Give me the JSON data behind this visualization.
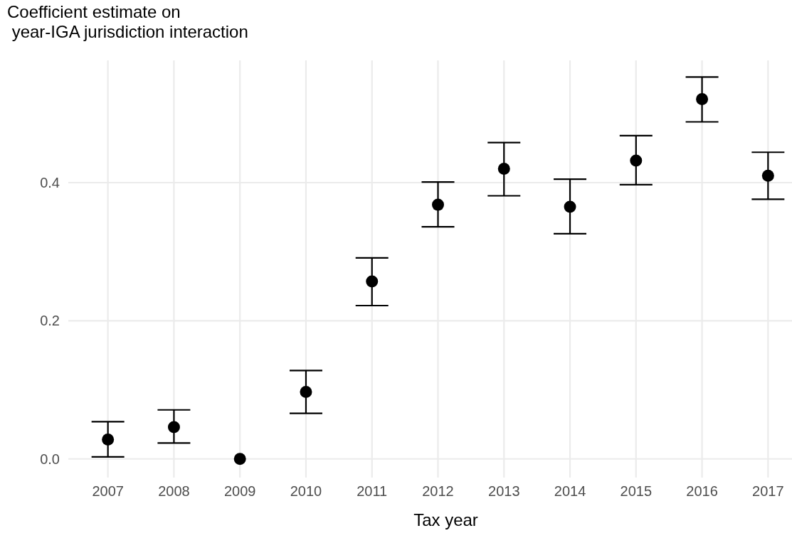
{
  "chart_data": {
    "type": "scatter",
    "ylabel": "Coefficient estimate on\n year-IGA jurisdiction interaction",
    "xlabel": "Tax year",
    "categories": [
      "2007",
      "2008",
      "2009",
      "2010",
      "2011",
      "2012",
      "2013",
      "2014",
      "2015",
      "2016",
      "2017"
    ],
    "values": [
      0.028,
      0.046,
      0,
      0.097,
      0.257,
      0.368,
      0.42,
      0.365,
      0.432,
      0.521,
      0.41
    ],
    "errors": [
      [
        0.003,
        0.054
      ],
      [
        0.023,
        0.071
      ],
      null,
      [
        0.066,
        0.128
      ],
      [
        0.222,
        0.291
      ],
      [
        0.336,
        0.401
      ],
      [
        0.381,
        0.458
      ],
      [
        0.326,
        0.405
      ],
      [
        0.397,
        0.468
      ],
      [
        0.488,
        0.553
      ],
      [
        0.376,
        0.444
      ]
    ],
    "color": "#000000",
    "marker": "circle",
    "ylim": [
      -0.027,
      0.577
    ],
    "yticks": [
      {
        "value": 0,
        "label": "0.0"
      },
      {
        "value": 0.2,
        "label": "0.2"
      },
      {
        "value": 0.4,
        "label": "0.4"
      }
    ],
    "grid": true
  }
}
